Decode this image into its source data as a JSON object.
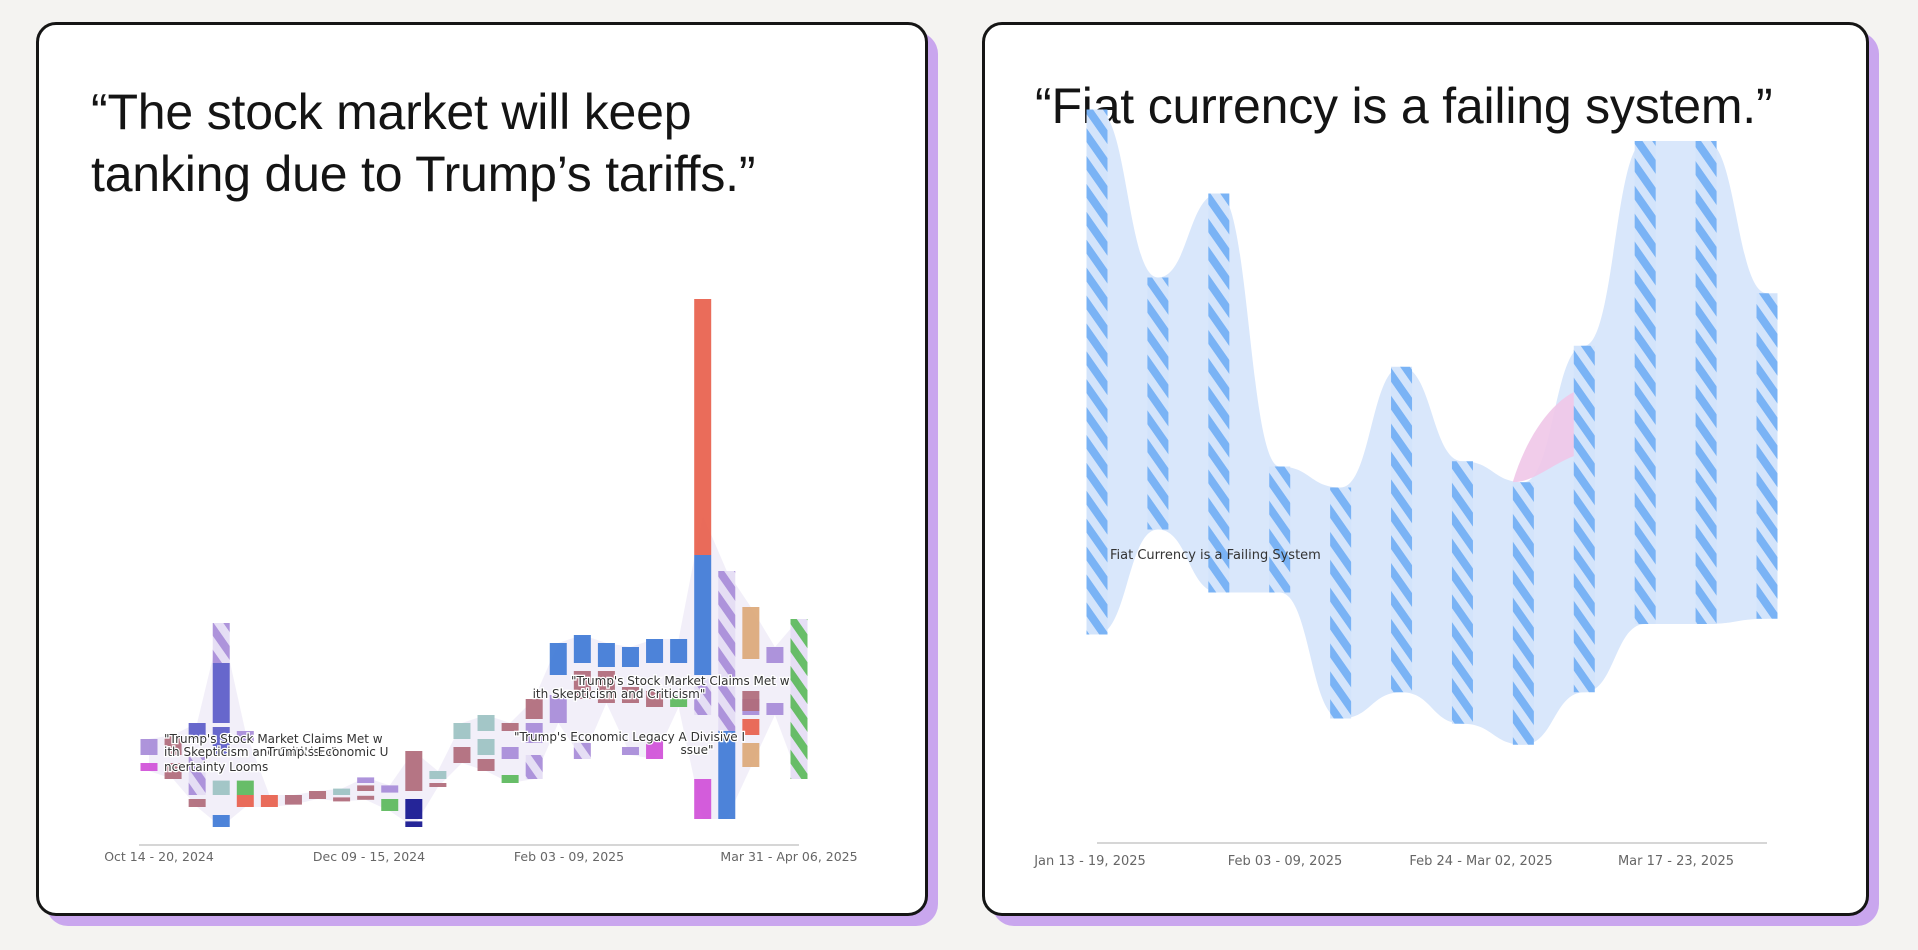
{
  "cards": [
    {
      "quote_line1": "“The stock market will keep",
      "quote_line2": "tanking due to Trump’s tariffs.”"
    },
    {
      "quote_line1": "“Fiat currency is a failing system.”"
    }
  ],
  "chart_data": [
    {
      "type": "stream",
      "title": "“The stock market will keep tanking due to Trump’s tariffs.”",
      "x_tick_labels": [
        "Oct 14 - 20, 2024",
        "Dec 09 - 15, 2024",
        "Feb 03 - 09, 2025",
        "Mar 31 - Apr 06, 2025"
      ],
      "annotations": [
        "\"Trump's Stock Market Claims Met w",
        "ith Skepticism and Criticism\"",
        "Trump's Economic U",
        "ncertainty Looms",
        "\"Trump's Stock Market Claims Met w",
        "ith Skepticism and Criticism\"",
        "\"Trump's Economic Legacy A Divisive I",
        "ssue\""
      ],
      "colors": {
        "purple": "#a78bd8",
        "indigo": "#5b5bc8",
        "rose": "#b06a7a",
        "blue": "#3f7ad6",
        "red": "#e8604c",
        "tan": "#dca878",
        "green": "#5bb85b",
        "teal": "#9cc2c2",
        "magenta": "#d04fd8",
        "navy": "#13138f"
      },
      "bars": [
        {
          "week": 0,
          "start": 0.05,
          "end": 0.07,
          "color": "purple"
        },
        {
          "week": 0,
          "start": 0.03,
          "end": 0.04,
          "color": "magenta"
        },
        {
          "week": 1,
          "start": 0.05,
          "end": 0.075,
          "color": "rose"
        },
        {
          "week": 1,
          "start": 0.02,
          "end": 0.04,
          "color": "rose"
        },
        {
          "week": 2,
          "start": 0.07,
          "end": 0.09,
          "color": "indigo"
        },
        {
          "week": 2,
          "start": 0.0,
          "end": 0.05,
          "color": "purple",
          "hatched": true
        },
        {
          "week": 2,
          "start": -0.015,
          "end": -0.005,
          "color": "rose"
        },
        {
          "week": 3,
          "start": 0.0,
          "end": 0.018,
          "color": "teal"
        },
        {
          "week": 3,
          "start": -0.04,
          "end": -0.025,
          "color": "blue"
        },
        {
          "week": 3,
          "start": 0.05,
          "end": 0.085,
          "color": "indigo"
        },
        {
          "week": 3,
          "start": 0.09,
          "end": 0.165,
          "color": "indigo"
        },
        {
          "week": 3,
          "start": 0.165,
          "end": 0.215,
          "color": "purple",
          "hatched": true
        },
        {
          "week": 4,
          "start": 0.065,
          "end": 0.08,
          "color": "purple"
        },
        {
          "week": 4,
          "start": -0.015,
          "end": 0.0,
          "color": "red"
        },
        {
          "week": 4,
          "start": 0.0,
          "end": 0.018,
          "color": "green"
        },
        {
          "week": 5,
          "start": -0.015,
          "end": 0.0,
          "color": "red"
        },
        {
          "week": 6,
          "start": -0.012,
          "end": 0.0,
          "color": "rose"
        },
        {
          "week": 7,
          "start": -0.005,
          "end": 0.005,
          "color": "rose"
        },
        {
          "week": 8,
          "start": 0.0,
          "end": 0.008,
          "color": "teal"
        },
        {
          "week": 8,
          "start": -0.008,
          "end": -0.003,
          "color": "rose"
        },
        {
          "week": 9,
          "start": 0.015,
          "end": 0.022,
          "color": "purple"
        },
        {
          "week": 9,
          "start": 0.005,
          "end": 0.012,
          "color": "rose"
        },
        {
          "week": 9,
          "start": -0.006,
          "end": -0.001,
          "color": "rose"
        },
        {
          "week": 10,
          "start": -0.02,
          "end": -0.005,
          "color": "green"
        },
        {
          "week": 10,
          "start": 0.003,
          "end": 0.012,
          "color": "purple"
        },
        {
          "week": 11,
          "start": -0.03,
          "end": -0.005,
          "color": "navy"
        },
        {
          "week": 11,
          "start": -0.04,
          "end": -0.033,
          "color": "navy"
        },
        {
          "week": 11,
          "start": 0.005,
          "end": 0.055,
          "color": "rose"
        },
        {
          "week": 12,
          "start": 0.02,
          "end": 0.03,
          "color": "teal"
        },
        {
          "week": 12,
          "start": 0.01,
          "end": 0.015,
          "color": "rose"
        },
        {
          "week": 13,
          "start": 0.04,
          "end": 0.06,
          "color": "rose"
        },
        {
          "week": 13,
          "start": 0.07,
          "end": 0.09,
          "color": "teal"
        },
        {
          "week": 14,
          "start": 0.08,
          "end": 0.1,
          "color": "teal"
        },
        {
          "week": 14,
          "start": 0.05,
          "end": 0.07,
          "color": "teal"
        },
        {
          "week": 14,
          "start": 0.03,
          "end": 0.045,
          "color": "rose"
        },
        {
          "week": 15,
          "start": 0.08,
          "end": 0.09,
          "color": "rose"
        },
        {
          "week": 15,
          "start": 0.045,
          "end": 0.06,
          "color": "purple"
        },
        {
          "week": 15,
          "start": 0.015,
          "end": 0.025,
          "color": "green"
        },
        {
          "week": 16,
          "start": 0.095,
          "end": 0.12,
          "color": "rose"
        },
        {
          "week": 16,
          "start": 0.065,
          "end": 0.09,
          "color": "purple"
        },
        {
          "week": 16,
          "start": 0.02,
          "end": 0.05,
          "color": "purple",
          "hatched": true
        },
        {
          "week": 17,
          "start": 0.09,
          "end": 0.125,
          "color": "purple"
        },
        {
          "week": 17,
          "start": 0.15,
          "end": 0.19,
          "color": "blue"
        },
        {
          "week": 18,
          "start": 0.12,
          "end": 0.155,
          "color": "rose"
        },
        {
          "week": 18,
          "start": 0.165,
          "end": 0.2,
          "color": "blue"
        },
        {
          "week": 18,
          "start": 0.045,
          "end": 0.065,
          "color": "purple",
          "hatched": true
        },
        {
          "week": 19,
          "start": 0.115,
          "end": 0.155,
          "color": "rose"
        },
        {
          "week": 19,
          "start": 0.16,
          "end": 0.19,
          "color": "blue"
        },
        {
          "week": 20,
          "start": 0.115,
          "end": 0.135,
          "color": "rose"
        },
        {
          "week": 20,
          "start": 0.16,
          "end": 0.185,
          "color": "blue"
        },
        {
          "week": 20,
          "start": 0.05,
          "end": 0.06,
          "color": "purple"
        },
        {
          "week": 21,
          "start": 0.045,
          "end": 0.07,
          "color": "magenta"
        },
        {
          "week": 21,
          "start": 0.11,
          "end": 0.13,
          "color": "rose"
        },
        {
          "week": 21,
          "start": 0.165,
          "end": 0.195,
          "color": "blue"
        },
        {
          "week": 22,
          "start": 0.165,
          "end": 0.195,
          "color": "blue"
        },
        {
          "week": 22,
          "start": 0.11,
          "end": 0.125,
          "color": "green"
        },
        {
          "week": 23,
          "start": 0.1,
          "end": 0.145,
          "color": "purple",
          "hatched": true
        },
        {
          "week": 23,
          "start": -0.03,
          "end": 0.02,
          "color": "magenta"
        },
        {
          "week": 23,
          "start": 0.15,
          "end": 0.3,
          "color": "blue"
        },
        {
          "week": 23,
          "start": 0.3,
          "end": 0.62,
          "color": "red"
        },
        {
          "week": 24,
          "start": -0.03,
          "end": 0.08,
          "color": "blue"
        },
        {
          "week": 24,
          "start": 0.08,
          "end": 0.28,
          "color": "purple",
          "hatched": true
        },
        {
          "week": 25,
          "start": 0.1,
          "end": 0.12,
          "color": "purple"
        },
        {
          "week": 25,
          "start": 0.035,
          "end": 0.065,
          "color": "tan"
        },
        {
          "week": 25,
          "start": 0.075,
          "end": 0.095,
          "color": "red"
        },
        {
          "week": 25,
          "start": 0.105,
          "end": 0.13,
          "color": "rose"
        },
        {
          "week": 25,
          "start": 0.17,
          "end": 0.235,
          "color": "tan"
        },
        {
          "week": 26,
          "start": 0.1,
          "end": 0.115,
          "color": "purple"
        },
        {
          "week": 26,
          "start": 0.165,
          "end": 0.185,
          "color": "purple"
        },
        {
          "week": 27,
          "start": 0.02,
          "end": 0.22,
          "color": "green",
          "hatched": true
        }
      ]
    },
    {
      "type": "stream",
      "title": "“Fiat currency is a failing system.”",
      "x_tick_labels": [
        "Jan 13 - 19, 2025",
        "Feb 03 - 09, 2025",
        "Feb 24 - Mar 02, 2025",
        "Mar 17 - 23, 2025"
      ],
      "series": [
        {
          "name": "Fiat Currency is a Failing System",
          "color": "#7ab3f5",
          "band_color": "#d9e7fb",
          "values": [
            25,
            12,
            19,
            6,
            11,
            15.5,
            12.5,
            12.5,
            16.5,
            23,
            23,
            15.5
          ],
          "centers": [
            23,
            21.5,
            22,
            15.5,
            12,
            15.5,
            12.5,
            11.5,
            16,
            22.5,
            22.5,
            19
          ]
        }
      ],
      "minor_series": {
        "color": "#f0c7e8",
        "week": 7.4,
        "value": 3.5
      }
    }
  ]
}
